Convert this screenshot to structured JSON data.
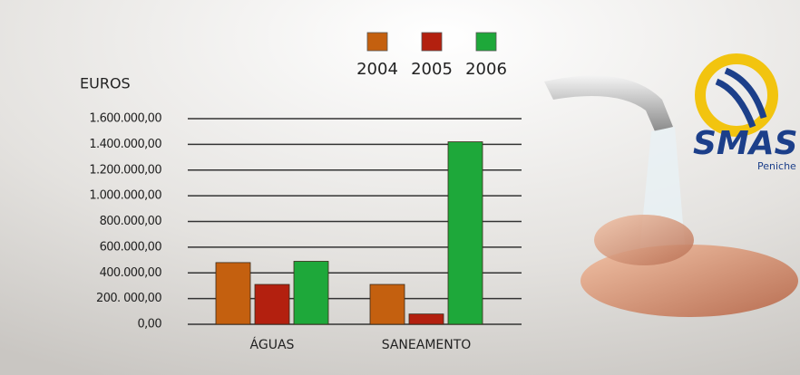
{
  "chart_data": {
    "type": "bar",
    "y_label": "EUROS",
    "categories": [
      "ÁGUAS",
      "SANEAMENTO"
    ],
    "series": [
      {
        "name": "2004",
        "color": "#c4600f",
        "values": [
          480000,
          310000
        ]
      },
      {
        "name": "2005",
        "color": "#b3200f",
        "values": [
          310000,
          80000
        ]
      },
      {
        "name": "2006",
        "color": "#1ea83a",
        "values": [
          490000,
          1420000
        ]
      }
    ],
    "ylim": [
      0,
      1600000
    ],
    "yticks": [
      {
        "value": 0,
        "label": "0,00"
      },
      {
        "value": 200000,
        "label": "200. 000,00"
      },
      {
        "value": 400000,
        "label": "400.000,00"
      },
      {
        "value": 600000,
        "label": "600.000,00"
      },
      {
        "value": 800000,
        "label": "800.000,00"
      },
      {
        "value": 1000000,
        "label": "1.000.000,00"
      },
      {
        "value": 1200000,
        "label": "1.200.000,00"
      },
      {
        "value": 1400000,
        "label": "1.400.000,00"
      },
      {
        "value": 1600000,
        "label": "1.600.000,00"
      }
    ],
    "grid": true
  },
  "logo": {
    "name": "SMAS",
    "place": "Peniche"
  }
}
